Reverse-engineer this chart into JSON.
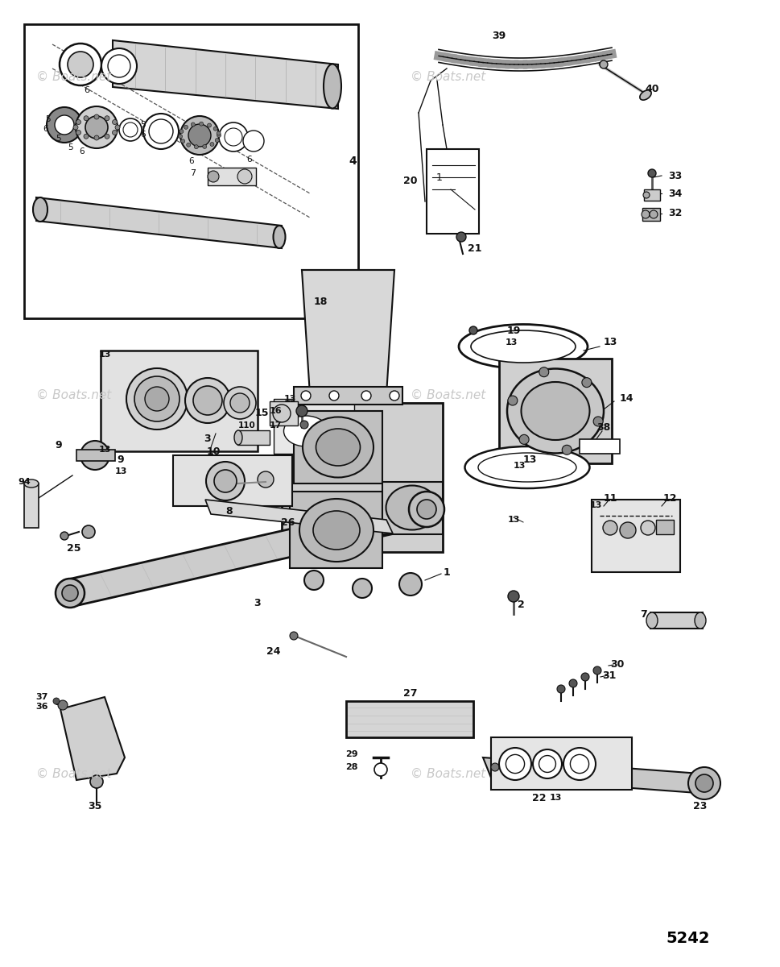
{
  "background_color": "#ffffff",
  "page_number": "5242",
  "watermark_text": "© Boats.net",
  "watermark_color": "#c8c8c8",
  "line_color": "#111111",
  "text_color": "#111111"
}
